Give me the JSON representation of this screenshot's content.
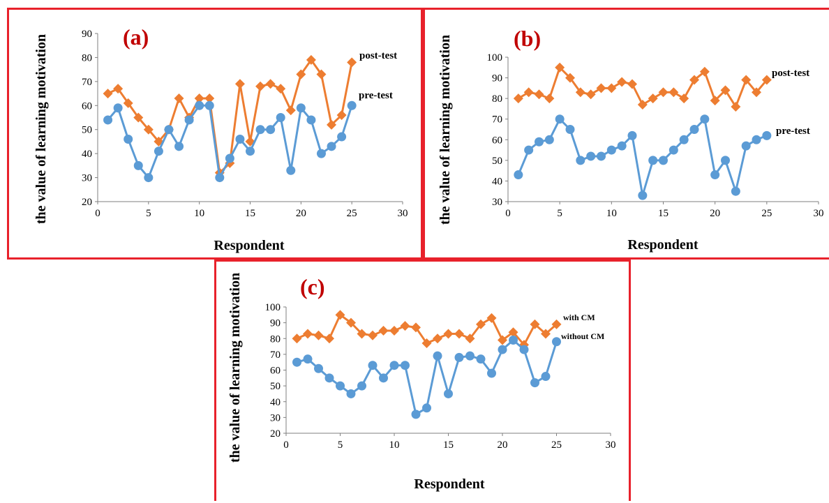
{
  "colors": {
    "blue": "#5b9bd5",
    "orange": "#ed7d31",
    "panel_border": "#e8212b",
    "panel_label": "#c00000",
    "axis": "#7f7f7f"
  },
  "chart_data": [
    {
      "type": "line",
      "panel_label": "(a)",
      "xlabel": "Respondent",
      "ylabel": "the value of learning motivation",
      "xlim": [
        0,
        30
      ],
      "ylim": [
        20,
        90
      ],
      "x_ticks": [
        0,
        5,
        10,
        15,
        20,
        25,
        30
      ],
      "y_ticks": [
        20,
        30,
        40,
        50,
        60,
        70,
        80,
        90
      ],
      "grid": false,
      "x": [
        1,
        2,
        3,
        4,
        5,
        6,
        7,
        8,
        9,
        10,
        11,
        12,
        13,
        14,
        15,
        16,
        17,
        18,
        19,
        20,
        21,
        22,
        23,
        24,
        25
      ],
      "series": [
        {
          "name": "post-test",
          "marker": "diamond",
          "color": "#ed7d31",
          "values": [
            65,
            67,
            61,
            55,
            50,
            45,
            50,
            63,
            55,
            63,
            63,
            32,
            36,
            69,
            45,
            68,
            69,
            67,
            58,
            73,
            79,
            73,
            52,
            56,
            78
          ]
        },
        {
          "name": "pre-test",
          "marker": "circle",
          "color": "#5b9bd5",
          "values": [
            54,
            59,
            46,
            35,
            30,
            41,
            50,
            43,
            54,
            60,
            60,
            30,
            38,
            46,
            41,
            50,
            50,
            55,
            33,
            59,
            54,
            40,
            43,
            47,
            60
          ]
        }
      ]
    },
    {
      "type": "line",
      "panel_label": "(b)",
      "xlabel": "Respondent",
      "ylabel": "the value of learning motivation",
      "xlim": [
        0,
        30
      ],
      "ylim": [
        30,
        100
      ],
      "x_ticks": [
        0,
        5,
        10,
        15,
        20,
        25,
        30
      ],
      "y_ticks": [
        30,
        40,
        50,
        60,
        70,
        80,
        90,
        100
      ],
      "grid": false,
      "x": [
        1,
        2,
        3,
        4,
        5,
        6,
        7,
        8,
        9,
        10,
        11,
        12,
        13,
        14,
        15,
        16,
        17,
        18,
        19,
        20,
        21,
        22,
        23,
        24,
        25
      ],
      "series": [
        {
          "name": "post-test",
          "marker": "diamond",
          "color": "#ed7d31",
          "values": [
            80,
            83,
            82,
            80,
            95,
            90,
            83,
            82,
            85,
            85,
            88,
            87,
            77,
            80,
            83,
            83,
            80,
            89,
            93,
            79,
            84,
            76,
            89,
            83,
            89
          ]
        },
        {
          "name": "pre-test",
          "marker": "circle",
          "color": "#5b9bd5",
          "values": [
            43,
            55,
            59,
            60,
            70,
            65,
            50,
            52,
            52,
            55,
            57,
            62,
            33,
            50,
            50,
            55,
            60,
            65,
            70,
            43,
            50,
            35,
            57,
            60,
            62
          ]
        }
      ]
    },
    {
      "type": "line",
      "panel_label": "(c)",
      "xlabel": "Respondent",
      "ylabel": "the value of learning motivation",
      "xlim": [
        0,
        30
      ],
      "ylim": [
        20,
        100
      ],
      "x_ticks": [
        0,
        5,
        10,
        15,
        20,
        25,
        30
      ],
      "y_ticks": [
        20,
        30,
        40,
        50,
        60,
        70,
        80,
        90,
        100
      ],
      "grid": false,
      "x": [
        1,
        2,
        3,
        4,
        5,
        6,
        7,
        8,
        9,
        10,
        11,
        12,
        13,
        14,
        15,
        16,
        17,
        18,
        19,
        20,
        21,
        22,
        23,
        24,
        25
      ],
      "series": [
        {
          "name": "with CM",
          "marker": "diamond",
          "color": "#ed7d31",
          "values": [
            80,
            83,
            82,
            80,
            95,
            90,
            83,
            82,
            85,
            85,
            88,
            87,
            77,
            80,
            83,
            83,
            80,
            89,
            93,
            79,
            84,
            76,
            89,
            83,
            89
          ]
        },
        {
          "name": "without CM",
          "marker": "circle",
          "color": "#5b9bd5",
          "values": [
            65,
            67,
            61,
            55,
            50,
            45,
            50,
            63,
            55,
            63,
            63,
            32,
            36,
            69,
            45,
            68,
            69,
            67,
            58,
            73,
            79,
            73,
            52,
            56,
            78
          ]
        }
      ]
    }
  ]
}
